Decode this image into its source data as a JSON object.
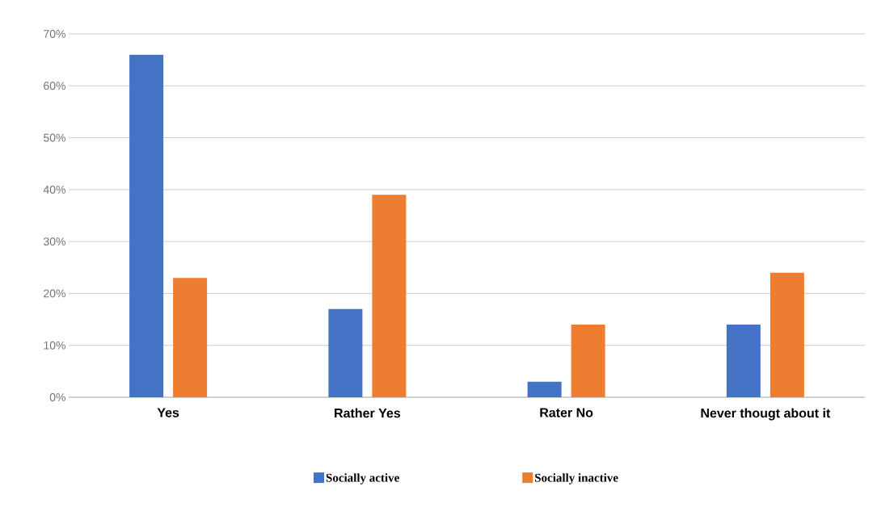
{
  "chart_data": {
    "type": "bar",
    "categories": [
      "Yes",
      "Rather Yes",
      "Rater No",
      "Never thougt about it"
    ],
    "series": [
      {
        "name": "Socially active",
        "color": "#4472c4",
        "values": [
          66,
          17,
          3,
          14
        ]
      },
      {
        "name": "Socially inactive",
        "color": "#ed7d31",
        "values": [
          23,
          39,
          14,
          24
        ]
      }
    ],
    "ylim": [
      0,
      70
    ],
    "yticks": [
      {
        "value": 0,
        "label": "0%"
      },
      {
        "value": 10,
        "label": "10%"
      },
      {
        "value": 20,
        "label": "20%"
      },
      {
        "value": 30,
        "label": "30%"
      },
      {
        "value": 40,
        "label": "40%"
      },
      {
        "value": 50,
        "label": "50%"
      },
      {
        "value": 60,
        "label": "60%"
      },
      {
        "value": 70,
        "label": "70%"
      }
    ],
    "grid": "y",
    "legend": "bottom"
  }
}
